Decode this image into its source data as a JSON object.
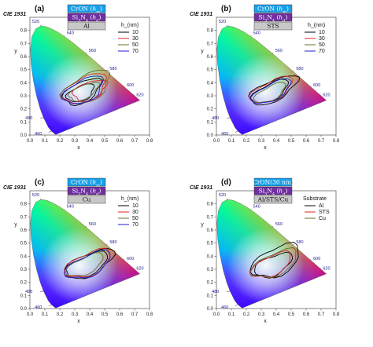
{
  "chart_data": [
    {
      "type": "line",
      "panel": "(a)",
      "title": "CIE 1931",
      "xlabel": "x",
      "ylabel": "y",
      "xlim": [
        0.0,
        0.8
      ],
      "ylim": [
        0.0,
        0.9
      ],
      "xticks": [
        "0.0",
        "0.1",
        "0.2",
        "0.3",
        "0.4",
        "0.5",
        "0.6",
        "0.7",
        "0.8"
      ],
      "yticks": [
        "0.0",
        "0.1",
        "0.2",
        "0.3",
        "0.4",
        "0.5",
        "0.6",
        "0.7",
        "0.8"
      ],
      "wavelength_labels": [
        "460",
        "480",
        "520",
        "540",
        "560",
        "580",
        "600",
        "620"
      ],
      "stack": [
        {
          "text": "CrON (h_m)",
          "fill": "#1aa0e8"
        },
        {
          "text": "Si3N4 (h_d)",
          "fill": "#7030a0"
        },
        {
          "text": "Al",
          "fill": "#c8c8c8"
        }
      ],
      "legend_title": "h_(nm)",
      "series": [
        {
          "name": "10",
          "color": "#000000",
          "loops": [
            {
              "cx": 0.34,
              "cy": 0.32,
              "rx": 0.1,
              "ry": 0.055,
              "rot": 30
            },
            {
              "cx": 0.35,
              "cy": 0.33,
              "rx": 0.14,
              "ry": 0.075,
              "rot": 34
            }
          ]
        },
        {
          "name": "30",
          "color": "#e02020",
          "loops": [
            {
              "cx": 0.37,
              "cy": 0.35,
              "rx": 0.16,
              "ry": 0.09,
              "rot": 32
            },
            {
              "cx": 0.4,
              "cy": 0.34,
              "rx": 0.12,
              "ry": 0.065,
              "rot": 28
            }
          ]
        },
        {
          "name": "50",
          "color": "#6b6b2a",
          "loops": [
            {
              "cx": 0.38,
              "cy": 0.36,
              "rx": 0.18,
              "ry": 0.095,
              "rot": 35
            },
            {
              "cx": 0.36,
              "cy": 0.33,
              "rx": 0.11,
              "ry": 0.05,
              "rot": 30
            }
          ]
        },
        {
          "name": "70",
          "color": "#2020d0",
          "loops": [
            {
              "cx": 0.36,
              "cy": 0.34,
              "rx": 0.15,
              "ry": 0.08,
              "rot": 33
            }
          ]
        }
      ]
    },
    {
      "type": "line",
      "panel": "(b)",
      "title": "CIE 1931",
      "xlabel": "x",
      "ylabel": "y",
      "xlim": [
        0.0,
        0.8
      ],
      "ylim": [
        0.0,
        0.9
      ],
      "xticks": [
        "0.0",
        "0.1",
        "0.2",
        "0.3",
        "0.4",
        "0.5",
        "0.6",
        "0.7",
        "0.8"
      ],
      "yticks": [
        "0.0",
        "0.1",
        "0.2",
        "0.3",
        "0.4",
        "0.5",
        "0.6",
        "0.7",
        "0.8"
      ],
      "wavelength_labels": [
        "460",
        "480",
        "520",
        "540",
        "560",
        "580",
        "600",
        "620"
      ],
      "stack": [
        {
          "text": "CrON (h_m)",
          "fill": "#1aa0e8"
        },
        {
          "text": "Si3N4 (h_d)",
          "fill": "#7030a0"
        },
        {
          "text": "STS",
          "fill": "#c8c8c8"
        }
      ],
      "legend_title": "h_(nm)",
      "series": [
        {
          "name": "10",
          "color": "#000000",
          "loops": [
            {
              "cx": 0.36,
              "cy": 0.33,
              "rx": 0.14,
              "ry": 0.06,
              "rot": 32
            },
            {
              "cx": 0.38,
              "cy": 0.34,
              "rx": 0.18,
              "ry": 0.075,
              "rot": 30
            }
          ]
        },
        {
          "name": "30",
          "color": "#e02020",
          "loops": [
            {
              "cx": 0.37,
              "cy": 0.34,
              "rx": 0.16,
              "ry": 0.07,
              "rot": 31
            }
          ]
        },
        {
          "name": "50",
          "color": "#6b6b2a",
          "loops": [
            {
              "cx": 0.36,
              "cy": 0.32,
              "rx": 0.12,
              "ry": 0.05,
              "rot": 33
            }
          ]
        },
        {
          "name": "70",
          "color": "#2020d0",
          "loops": [
            {
              "cx": 0.37,
              "cy": 0.33,
              "rx": 0.15,
              "ry": 0.06,
              "rot": 32
            }
          ]
        }
      ]
    },
    {
      "type": "line",
      "panel": "(c)",
      "title": "CIE 1931",
      "xlabel": "x",
      "ylabel": "y",
      "xlim": [
        0.0,
        0.8
      ],
      "ylim": [
        0.0,
        0.9
      ],
      "xticks": [
        "0.0",
        "0.1",
        "0.2",
        "0.3",
        "0.4",
        "0.5",
        "0.6",
        "0.7",
        "0.8"
      ],
      "yticks": [
        "0.0",
        "0.1",
        "0.2",
        "0.3",
        "0.4",
        "0.5",
        "0.6",
        "0.7",
        "0.8"
      ],
      "wavelength_labels": [
        "460",
        "480",
        "520",
        "540",
        "560",
        "580",
        "600",
        "620"
      ],
      "stack": [
        {
          "text": "CrON (h_m)",
          "fill": "#1aa0e8"
        },
        {
          "text": "Si3N4 (h_d)",
          "fill": "#7030a0"
        },
        {
          "text": "Cu",
          "fill": "#c8c8c8"
        }
      ],
      "legend_title": "h_(nm)",
      "series": [
        {
          "name": "10",
          "color": "#000000",
          "loops": [
            {
              "cx": 0.38,
              "cy": 0.33,
              "rx": 0.16,
              "ry": 0.07,
              "rot": 28
            },
            {
              "cx": 0.4,
              "cy": 0.34,
              "rx": 0.18,
              "ry": 0.08,
              "rot": 30
            }
          ]
        },
        {
          "name": "30",
          "color": "#e02020",
          "loops": [
            {
              "cx": 0.39,
              "cy": 0.34,
              "rx": 0.17,
              "ry": 0.08,
              "rot": 29
            }
          ]
        },
        {
          "name": "50",
          "color": "#6b6b2a",
          "loops": [
            {
              "cx": 0.37,
              "cy": 0.33,
              "rx": 0.14,
              "ry": 0.06,
              "rot": 30
            }
          ]
        },
        {
          "name": "70",
          "color": "#2020d0",
          "loops": [
            {
              "cx": 0.39,
              "cy": 0.33,
              "rx": 0.17,
              "ry": 0.075,
              "rot": 29
            }
          ]
        }
      ]
    },
    {
      "type": "line",
      "panel": "(d)",
      "title": "CIE 1931",
      "xlabel": "x",
      "ylabel": "y",
      "xlim": [
        0.0,
        0.8
      ],
      "ylim": [
        0.0,
        0.9
      ],
      "xticks": [
        "0.0",
        "0.1",
        "0.2",
        "0.3",
        "0.4",
        "0.5",
        "0.6",
        "0.7",
        "0.8"
      ],
      "yticks": [
        "0.0",
        "0.1",
        "0.2",
        "0.3",
        "0.4",
        "0.5",
        "0.6",
        "0.7",
        "0.8"
      ],
      "wavelength_labels": [
        "460",
        "480",
        "520",
        "540",
        "560",
        "580",
        "600",
        "620"
      ],
      "stack": [
        {
          "text": "CrON(30 nm)",
          "fill": "#1aa0e8"
        },
        {
          "text": "Si3N4 (h_d)",
          "fill": "#7030a0"
        },
        {
          "text": "Al/STS/Cu",
          "fill": "#c8c8c8"
        }
      ],
      "legend_title": "Substrate",
      "series": [
        {
          "name": "Al",
          "color": "#000000",
          "loops": [
            {
              "cx": 0.4,
              "cy": 0.36,
              "rx": 0.18,
              "ry": 0.1,
              "rot": 32
            },
            {
              "cx": 0.38,
              "cy": 0.33,
              "rx": 0.14,
              "ry": 0.07,
              "rot": 30
            }
          ]
        },
        {
          "name": "STS",
          "color": "#e02020",
          "loops": [
            {
              "cx": 0.37,
              "cy": 0.33,
              "rx": 0.15,
              "ry": 0.07,
              "rot": 31
            }
          ]
        },
        {
          "name": "Cu",
          "color": "#6b6b2a",
          "loops": [
            {
              "cx": 0.39,
              "cy": 0.34,
              "rx": 0.17,
              "ry": 0.08,
              "rot": 29
            }
          ]
        }
      ]
    }
  ]
}
